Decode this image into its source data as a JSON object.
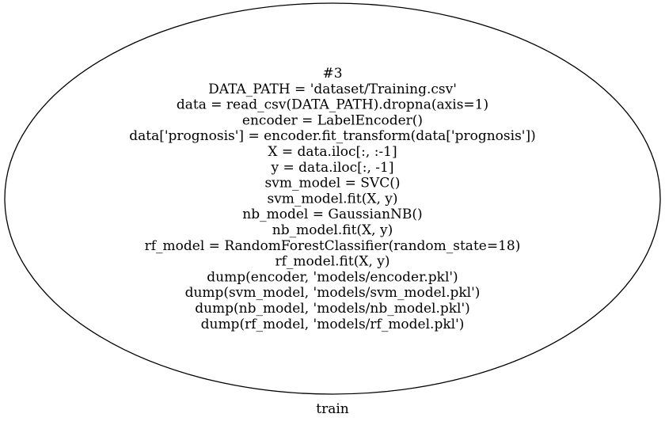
{
  "diagram": {
    "node": {
      "shape": "ellipse",
      "stroke_color": "#000000",
      "fill_color": "#ffffff",
      "lines": [
        "#3",
        "DATA_PATH = 'dataset/Training.csv'",
        "data = read_csv(DATA_PATH).dropna(axis=1)",
        "encoder = LabelEncoder()",
        "data['prognosis'] = encoder.fit_transform(data['prognosis'])",
        "X = data.iloc[:, :-1]",
        "y = data.iloc[:, -1]",
        "svm_model = SVC()",
        "svm_model.fit(X, y)",
        "nb_model = GaussianNB()",
        "nb_model.fit(X, y)",
        "rf_model = RandomForestClassifier(random_state=18)",
        "rf_model.fit(X, y)",
        "dump(encoder, 'models/encoder.pkl')",
        "dump(svm_model, 'models/svm_model.pkl')",
        "dump(nb_model, 'models/nb_model.pkl')",
        "dump(rf_model, 'models/rf_model.pkl')"
      ]
    },
    "caption": "train"
  }
}
